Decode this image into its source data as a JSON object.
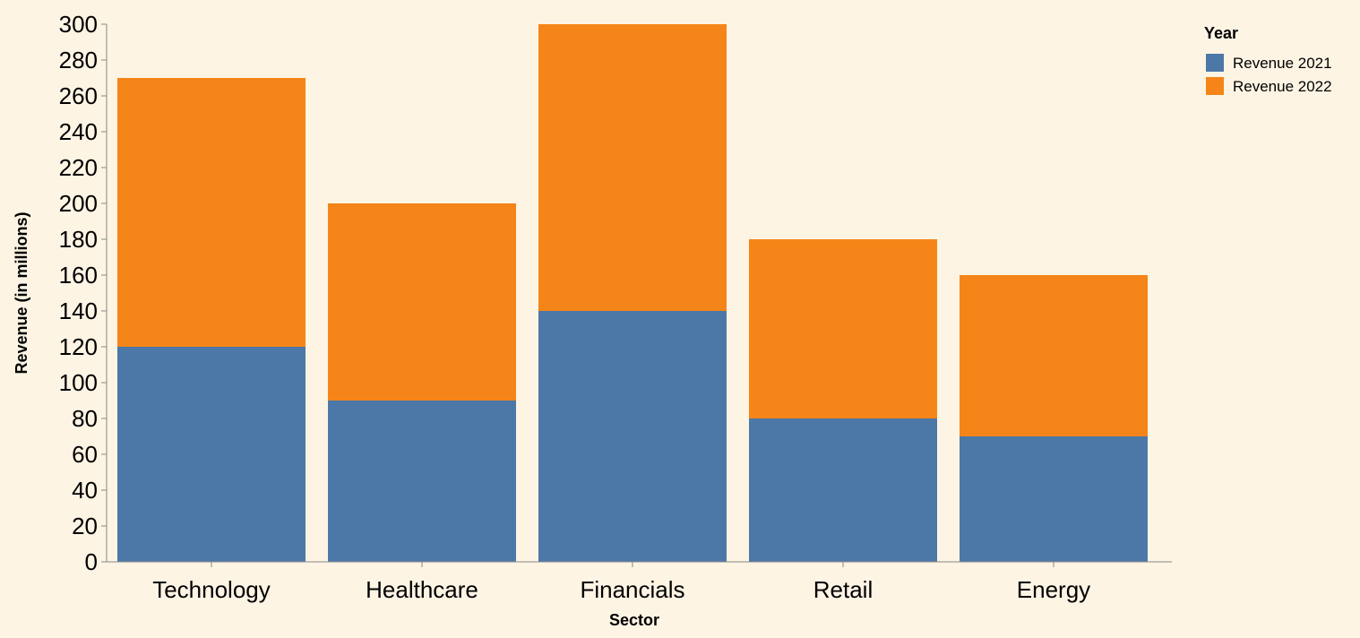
{
  "chart_data": {
    "type": "bar",
    "stacked": true,
    "categories": [
      "Technology",
      "Healthcare",
      "Financials",
      "Retail",
      "Energy"
    ],
    "series": [
      {
        "name": "Revenue 2021",
        "values": [
          120,
          90,
          140,
          80,
          70
        ],
        "color": "#4c78a8"
      },
      {
        "name": "Revenue 2022",
        "values": [
          150,
          110,
          160,
          100,
          90
        ],
        "color": "#f58518"
      }
    ],
    "title": "",
    "xlabel": "Sector",
    "ylabel": "Revenue (in millions)",
    "ylim": [
      0,
      300
    ],
    "yticks": [
      0,
      20,
      40,
      60,
      80,
      100,
      120,
      140,
      160,
      180,
      200,
      220,
      240,
      260,
      280,
      300
    ],
    "grid": false,
    "legend": {
      "title": "Year",
      "position": "top-right"
    },
    "background": "#fdf4e4"
  }
}
